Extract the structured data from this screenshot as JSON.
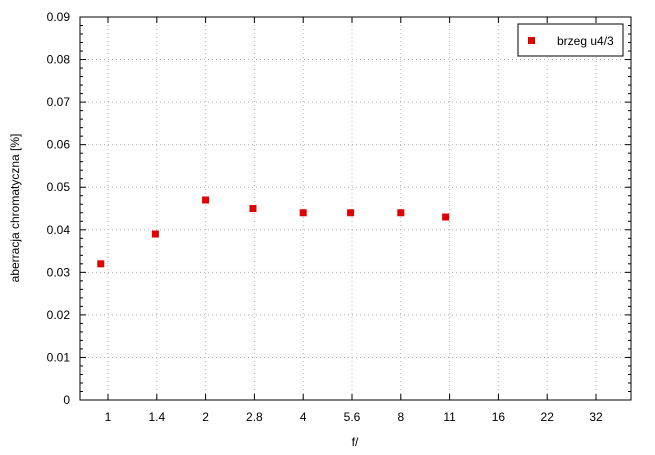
{
  "chart_data": {
    "type": "scatter",
    "title": "",
    "xlabel": "f/",
    "ylabel": "aberracja chromatyczna [%]",
    "categories": [
      "1",
      "1.4",
      "2",
      "2.8",
      "4",
      "5.6",
      "8",
      "11",
      "16",
      "22",
      "32"
    ],
    "y_ticks": [
      "0",
      "0.01",
      "0.02",
      "0.03",
      "0.04",
      "0.05",
      "0.06",
      "0.07",
      "0.08",
      "0.09"
    ],
    "ylim": [
      0,
      0.09
    ],
    "x_scale": "log (f-stop stops)",
    "grid": true,
    "legend_position": "top-right",
    "series": [
      {
        "name": "brzeg u4/3",
        "color": "#e00000",
        "marker": "square",
        "points": [
          {
            "x": 0.95,
            "y": 0.032
          },
          {
            "x": 1.4,
            "y": 0.039
          },
          {
            "x": 2.0,
            "y": 0.047
          },
          {
            "x": 2.8,
            "y": 0.045
          },
          {
            "x": 4.0,
            "y": 0.044
          },
          {
            "x": 5.6,
            "y": 0.044
          },
          {
            "x": 8.0,
            "y": 0.044
          },
          {
            "x": 11.0,
            "y": 0.043
          }
        ]
      }
    ]
  }
}
